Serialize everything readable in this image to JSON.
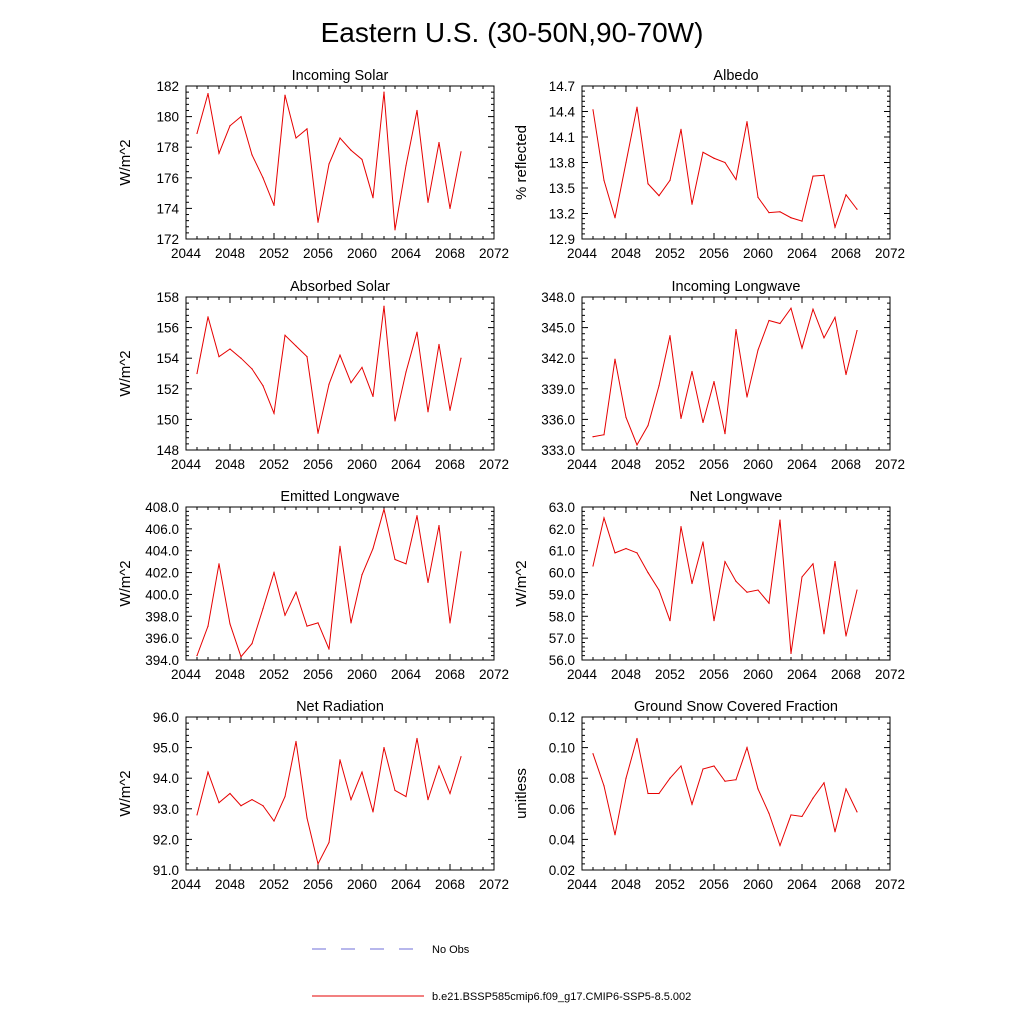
{
  "figure_title": "Eastern U.S. (30-50N,90-70W)",
  "legend": {
    "obs_label": "No Obs",
    "obs_color": "#6f6fd8",
    "model_label": "b.e21.BSSP585cmip6.f09_g17.CMIP6-SSP5-8.5.002",
    "model_color": "#e60000"
  },
  "chart_data": [
    {
      "type": "line",
      "title": "Incoming Solar",
      "xlabel": "",
      "ylabel": "W/m^2",
      "xlim": [
        2044,
        2072
      ],
      "ylim": [
        172,
        182
      ],
      "xticks": [
        2044,
        2048,
        2052,
        2056,
        2060,
        2064,
        2068,
        2072
      ],
      "yticks": [
        "172",
        "174",
        "176",
        "178",
        "180",
        "182"
      ],
      "series": [
        {
          "name": "b.e21.BSSP585cmip6.f09_g17.CMIP6-SSP5-8.5.002",
          "x": [
            2045,
            2046,
            2047,
            2048,
            2049,
            2050,
            2051,
            2052,
            2053,
            2054,
            2055,
            2056,
            2057,
            2058,
            2059,
            2060,
            2061,
            2062,
            2063,
            2064,
            2065,
            2066,
            2067,
            2068,
            2069
          ],
          "values": [
            178.9,
            181.5,
            177.6,
            179.4,
            180.0,
            177.5,
            176.0,
            174.2,
            181.4,
            178.6,
            179.2,
            173.1,
            176.9,
            178.6,
            177.8,
            177.2,
            174.7,
            181.6,
            172.6,
            176.8,
            180.4,
            174.4,
            178.3,
            174.0,
            177.7
          ]
        }
      ]
    },
    {
      "type": "line",
      "title": "Albedo",
      "xlabel": "",
      "ylabel": "% reflected",
      "xlim": [
        2044,
        2072
      ],
      "ylim": [
        12.9,
        14.7
      ],
      "xticks": [
        2044,
        2048,
        2052,
        2056,
        2060,
        2064,
        2068,
        2072
      ],
      "yticks": [
        "12.9",
        "13.2",
        "13.5",
        "13.8",
        "14.1",
        "14.4",
        "14.7"
      ],
      "series": [
        {
          "name": "b.e21.BSSP585cmip6.f09_g17.CMIP6-SSP5-8.5.002",
          "x": [
            2045,
            2046,
            2047,
            2048,
            2049,
            2050,
            2051,
            2052,
            2053,
            2054,
            2055,
            2056,
            2057,
            2058,
            2059,
            2060,
            2061,
            2062,
            2063,
            2064,
            2065,
            2066,
            2067,
            2068,
            2069
          ],
          "values": [
            14.42,
            13.59,
            13.15,
            13.8,
            14.45,
            13.55,
            13.41,
            13.59,
            14.19,
            13.31,
            13.92,
            13.85,
            13.8,
            13.6,
            14.28,
            13.39,
            13.21,
            13.22,
            13.15,
            13.11,
            13.64,
            13.65,
            13.04,
            13.42,
            13.25
          ]
        }
      ]
    },
    {
      "type": "line",
      "title": "Absorbed Solar",
      "xlabel": "",
      "ylabel": "W/m^2",
      "xlim": [
        2044,
        2072
      ],
      "ylim": [
        148,
        158
      ],
      "xticks": [
        2044,
        2048,
        2052,
        2056,
        2060,
        2064,
        2068,
        2072
      ],
      "yticks": [
        "148",
        "150",
        "152",
        "154",
        "156",
        "158"
      ],
      "series": [
        {
          "name": "b.e21.BSSP585cmip6.f09_g17.CMIP6-SSP5-8.5.002",
          "x": [
            2045,
            2046,
            2047,
            2048,
            2049,
            2050,
            2051,
            2052,
            2053,
            2054,
            2055,
            2056,
            2057,
            2058,
            2059,
            2060,
            2061,
            2062,
            2063,
            2064,
            2065,
            2066,
            2067,
            2068,
            2069
          ],
          "values": [
            153.0,
            156.7,
            154.1,
            154.6,
            154.0,
            153.3,
            152.2,
            150.4,
            155.5,
            154.8,
            154.1,
            149.1,
            152.3,
            154.2,
            152.4,
            153.4,
            151.5,
            157.4,
            149.9,
            153.1,
            155.7,
            150.5,
            154.9,
            150.6,
            154.0
          ]
        }
      ]
    },
    {
      "type": "line",
      "title": "Incoming Longwave",
      "xlabel": "",
      "ylabel": "",
      "xlim": [
        2044,
        2072
      ],
      "ylim": [
        333.0,
        348.0
      ],
      "xticks": [
        2044,
        2048,
        2052,
        2056,
        2060,
        2064,
        2068,
        2072
      ],
      "yticks": [
        "333.0",
        "336.0",
        "339.0",
        "342.0",
        "345.0",
        "348.0"
      ],
      "series": [
        {
          "name": "b.e21.BSSP585cmip6.f09_g17.CMIP6-SSP5-8.5.002",
          "x": [
            2045,
            2046,
            2047,
            2048,
            2049,
            2050,
            2051,
            2052,
            2053,
            2054,
            2055,
            2056,
            2057,
            2058,
            2059,
            2060,
            2061,
            2062,
            2063,
            2064,
            2065,
            2066,
            2067,
            2068,
            2069
          ],
          "values": [
            334.3,
            334.5,
            341.9,
            336.2,
            333.5,
            335.4,
            339.3,
            344.2,
            336.1,
            340.7,
            335.7,
            339.7,
            334.6,
            344.8,
            338.2,
            342.8,
            345.7,
            345.4,
            346.9,
            343.0,
            346.8,
            344.0,
            346.0,
            340.4,
            344.7
          ]
        }
      ]
    },
    {
      "type": "line",
      "title": "Emitted Longwave",
      "xlabel": "",
      "ylabel": "W/m^2",
      "xlim": [
        2044,
        2072
      ],
      "ylim": [
        394.0,
        408.0
      ],
      "xticks": [
        2044,
        2048,
        2052,
        2056,
        2060,
        2064,
        2068,
        2072
      ],
      "yticks": [
        "394.0",
        "396.0",
        "398.0",
        "400.0",
        "402.0",
        "404.0",
        "406.0",
        "408.0"
      ],
      "series": [
        {
          "name": "b.e21.BSSP585cmip6.f09_g17.CMIP6-SSP5-8.5.002",
          "x": [
            2045,
            2046,
            2047,
            2048,
            2049,
            2050,
            2051,
            2052,
            2053,
            2054,
            2055,
            2056,
            2057,
            2058,
            2059,
            2060,
            2061,
            2062,
            2063,
            2064,
            2065,
            2066,
            2067,
            2068,
            2069
          ],
          "values": [
            394.4,
            397.1,
            402.8,
            397.3,
            394.3,
            395.5,
            398.7,
            402.0,
            398.1,
            400.2,
            397.1,
            397.4,
            395.0,
            404.4,
            397.4,
            401.8,
            404.2,
            407.8,
            403.2,
            402.8,
            407.2,
            401.1,
            406.3,
            397.4,
            403.9
          ]
        }
      ]
    },
    {
      "type": "line",
      "title": "Net Longwave",
      "xlabel": "",
      "ylabel": "W/m^2",
      "xlim": [
        2044,
        2072
      ],
      "ylim": [
        56.0,
        63.0
      ],
      "xticks": [
        2044,
        2048,
        2052,
        2056,
        2060,
        2064,
        2068,
        2072
      ],
      "yticks": [
        "56.0",
        "57.0",
        "58.0",
        "59.0",
        "60.0",
        "61.0",
        "62.0",
        "63.0"
      ],
      "series": [
        {
          "name": "b.e21.BSSP585cmip6.f09_g17.CMIP6-SSP5-8.5.002",
          "x": [
            2045,
            2046,
            2047,
            2048,
            2049,
            2050,
            2051,
            2052,
            2053,
            2054,
            2055,
            2056,
            2057,
            2058,
            2059,
            2060,
            2061,
            2062,
            2063,
            2064,
            2065,
            2066,
            2067,
            2068,
            2069
          ],
          "values": [
            60.3,
            62.5,
            60.9,
            61.1,
            60.9,
            60.0,
            59.2,
            57.8,
            62.1,
            59.5,
            61.4,
            57.8,
            60.5,
            59.6,
            59.1,
            59.2,
            58.6,
            62.4,
            56.3,
            59.8,
            60.4,
            57.2,
            60.5,
            57.1,
            59.2
          ]
        }
      ]
    },
    {
      "type": "line",
      "title": "Net Radiation",
      "xlabel": "",
      "ylabel": "W/m^2",
      "xlim": [
        2044,
        2072
      ],
      "ylim": [
        91.0,
        96.0
      ],
      "xticks": [
        2044,
        2048,
        2052,
        2056,
        2060,
        2064,
        2068,
        2072
      ],
      "yticks": [
        "91.0",
        "92.0",
        "93.0",
        "94.0",
        "95.0",
        "96.0"
      ],
      "series": [
        {
          "name": "b.e21.BSSP585cmip6.f09_g17.CMIP6-SSP5-8.5.002",
          "x": [
            2045,
            2046,
            2047,
            2048,
            2049,
            2050,
            2051,
            2052,
            2053,
            2054,
            2055,
            2056,
            2057,
            2058,
            2059,
            2060,
            2061,
            2062,
            2063,
            2064,
            2065,
            2066,
            2067,
            2068,
            2069
          ],
          "values": [
            92.8,
            94.2,
            93.2,
            93.5,
            93.1,
            93.3,
            93.1,
            92.6,
            93.4,
            95.2,
            92.7,
            91.2,
            91.9,
            94.6,
            93.3,
            94.2,
            92.9,
            95.0,
            93.6,
            93.4,
            95.3,
            93.3,
            94.4,
            93.5,
            94.7
          ]
        }
      ]
    },
    {
      "type": "line",
      "title": "Ground Snow Covered Fraction",
      "xlabel": "",
      "ylabel": "unitless",
      "xlim": [
        2044,
        2072
      ],
      "ylim": [
        0.02,
        0.12
      ],
      "xticks": [
        2044,
        2048,
        2052,
        2056,
        2060,
        2064,
        2068,
        2072
      ],
      "yticks": [
        "0.02",
        "0.04",
        "0.06",
        "0.08",
        "0.10",
        "0.12"
      ],
      "series": [
        {
          "name": "b.e21.BSSP585cmip6.f09_g17.CMIP6-SSP5-8.5.002",
          "x": [
            2045,
            2046,
            2047,
            2048,
            2049,
            2050,
            2051,
            2052,
            2053,
            2054,
            2055,
            2056,
            2057,
            2058,
            2059,
            2060,
            2061,
            2062,
            2063,
            2064,
            2065,
            2066,
            2067,
            2068,
            2069
          ],
          "values": [
            0.096,
            0.075,
            0.043,
            0.08,
            0.106,
            0.07,
            0.07,
            0.08,
            0.088,
            0.063,
            0.086,
            0.088,
            0.078,
            0.079,
            0.1,
            0.073,
            0.057,
            0.036,
            0.056,
            0.055,
            0.067,
            0.077,
            0.045,
            0.073,
            0.058
          ]
        }
      ]
    }
  ]
}
